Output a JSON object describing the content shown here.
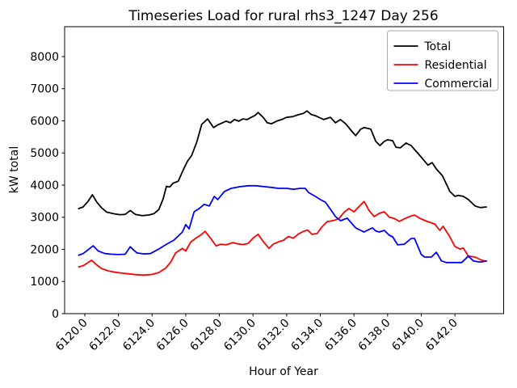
{
  "chart_data": {
    "type": "line",
    "title": "Timeseries Load for rural rhs3_1247  Day 256",
    "xlabel": "Hour of Year",
    "ylabel": "kW total",
    "xlim": [
      6118.8,
      6144.9
    ],
    "ylim": [
      0,
      8930
    ],
    "grid": false,
    "xticks": {
      "values": [
        6120,
        6122,
        6124,
        6126,
        6128,
        6130,
        6132,
        6134,
        6136,
        6138,
        6140,
        6142
      ],
      "labels": [
        "6120.0",
        "6122.0",
        "6124.0",
        "6126.0",
        "6128.0",
        "6130.0",
        "6132.0",
        "6134.0",
        "6136.0",
        "6138.0",
        "6140.0",
        "6142.0"
      ]
    },
    "yticks": {
      "values": [
        0,
        1000,
        2000,
        3000,
        4000,
        5000,
        6000,
        7000,
        8000
      ],
      "labels": [
        "0",
        "1000",
        "2000",
        "3000",
        "4000",
        "5000",
        "6000",
        "7000",
        "8000"
      ]
    },
    "legend": {
      "position": "upper right",
      "entries": [
        "Total",
        "Residential",
        "Commercial"
      ],
      "edge_color": "#aaaaaa",
      "fill_color": "#ffffff"
    },
    "series": [
      {
        "name": "Total",
        "color": "#000000",
        "x": [
          6119.6,
          6119.9,
          6120.2,
          6120.45,
          6120.7,
          6121.0,
          6121.3,
          6121.7,
          6122.1,
          6122.4,
          6122.7,
          6123.0,
          6123.4,
          6123.8,
          6124.1,
          6124.4,
          6124.65,
          6124.85,
          6125.05,
          6125.25,
          6125.55,
          6125.85,
          6126.1,
          6126.35,
          6126.65,
          6126.95,
          6127.3,
          6127.65,
          6127.9,
          6128.4,
          6128.65,
          6128.9,
          6129.15,
          6129.4,
          6129.65,
          6129.9,
          6130.1,
          6130.3,
          6130.6,
          6130.85,
          6131.1,
          6131.4,
          6131.7,
          6132.0,
          6132.35,
          6132.7,
          6133.0,
          6133.2,
          6133.45,
          6133.7,
          6134.2,
          6134.6,
          6134.9,
          6135.2,
          6135.5,
          6135.9,
          6136.1,
          6136.4,
          6136.6,
          6137.0,
          6137.3,
          6137.55,
          6137.8,
          6138.0,
          6138.3,
          6138.5,
          6138.75,
          6139.1,
          6139.4,
          6139.6,
          6140.0,
          6140.4,
          6140.65,
          6140.9,
          6141.25,
          6141.5,
          6141.7,
          6142.0,
          6142.2,
          6142.5,
          6142.8,
          6143.2,
          6143.5,
          6143.9
        ],
        "y": [
          3260,
          3320,
          3500,
          3700,
          3480,
          3290,
          3160,
          3110,
          3080,
          3090,
          3210,
          3090,
          3050,
          3070,
          3110,
          3240,
          3560,
          3960,
          3940,
          4060,
          4120,
          4470,
          4740,
          4920,
          5330,
          5890,
          6060,
          5790,
          5870,
          5990,
          5940,
          6040,
          5990,
          6060,
          6040,
          6110,
          6160,
          6260,
          6110,
          5940,
          5910,
          5990,
          6040,
          6110,
          6130,
          6190,
          6230,
          6310,
          6200,
          6160,
          6040,
          6110,
          5940,
          6040,
          5910,
          5660,
          5540,
          5740,
          5790,
          5740,
          5360,
          5230,
          5360,
          5410,
          5380,
          5180,
          5160,
          5310,
          5230,
          5110,
          4870,
          4620,
          4700,
          4500,
          4300,
          4030,
          3800,
          3650,
          3680,
          3650,
          3550,
          3350,
          3300,
          3320
        ]
      },
      {
        "name": "Residential",
        "color": "#ff0000",
        "x": [
          6119.6,
          6119.9,
          6120.2,
          6120.4,
          6120.7,
          6121.0,
          6121.4,
          6121.8,
          6122.2,
          6122.6,
          6123.0,
          6123.5,
          6124.0,
          6124.4,
          6124.8,
          6125.1,
          6125.4,
          6125.8,
          6126.0,
          6126.3,
          6126.6,
          6126.9,
          6127.15,
          6127.5,
          6127.8,
          6128.1,
          6128.4,
          6128.8,
          6129.1,
          6129.4,
          6129.7,
          6130.0,
          6130.3,
          6130.6,
          6130.95,
          6131.2,
          6131.5,
          6131.8,
          6132.1,
          6132.4,
          6132.7,
          6133.0,
          6133.25,
          6133.5,
          6133.8,
          6134.1,
          6134.4,
          6134.8,
          6135.1,
          6135.4,
          6135.7,
          6136.0,
          6136.3,
          6136.6,
          6136.9,
          6137.2,
          6137.5,
          6137.8,
          6138.1,
          6138.4,
          6138.7,
          6139.0,
          6139.3,
          6139.6,
          6139.9,
          6140.3,
          6140.8,
          6141.1,
          6141.3,
          6141.7,
          6142.0,
          6142.3,
          6142.5,
          6142.8,
          6143.2,
          6143.6,
          6143.9
        ],
        "y": [
          1450,
          1490,
          1590,
          1660,
          1520,
          1400,
          1330,
          1290,
          1260,
          1240,
          1215,
          1200,
          1220,
          1280,
          1410,
          1600,
          1890,
          2030,
          1950,
          2230,
          2350,
          2450,
          2560,
          2330,
          2110,
          2160,
          2140,
          2210,
          2170,
          2150,
          2180,
          2350,
          2470,
          2250,
          2030,
          2160,
          2230,
          2280,
          2400,
          2350,
          2480,
          2560,
          2600,
          2470,
          2490,
          2700,
          2860,
          2900,
          2950,
          3150,
          3270,
          3170,
          3330,
          3490,
          3210,
          3020,
          3120,
          3170,
          3000,
          2960,
          2870,
          2950,
          3020,
          3070,
          2970,
          2880,
          2790,
          2590,
          2720,
          2390,
          2090,
          2010,
          2040,
          1790,
          1760,
          1660,
          1630
        ]
      },
      {
        "name": "Commercial",
        "color": "#0000ff",
        "x": [
          6119.6,
          6119.9,
          6120.2,
          6120.5,
          6120.8,
          6121.2,
          6121.6,
          6122.0,
          6122.4,
          6122.7,
          6123.1,
          6123.5,
          6123.9,
          6124.4,
          6124.8,
          6125.3,
          6125.8,
          6126.0,
          6126.2,
          6126.5,
          6126.8,
          6127.1,
          6127.4,
          6127.7,
          6127.9,
          6128.3,
          6128.7,
          6129.2,
          6129.7,
          6130.2,
          6130.7,
          6131.1,
          6131.5,
          6132.0,
          6132.4,
          6132.8,
          6133.1,
          6133.3,
          6133.7,
          6134.0,
          6134.3,
          6134.6,
          6134.9,
          6135.2,
          6135.6,
          6135.9,
          6136.1,
          6136.4,
          6136.6,
          6136.9,
          6137.1,
          6137.3,
          6137.5,
          6137.8,
          6138.1,
          6138.3,
          6138.6,
          6139.0,
          6139.4,
          6139.6,
          6140.0,
          6140.2,
          6140.6,
          6140.9,
          6141.2,
          6141.5,
          6142.1,
          6142.4,
          6142.8,
          6143.1,
          6143.4,
          6143.6,
          6143.9
        ],
        "y": [
          1810,
          1870,
          1990,
          2110,
          1950,
          1870,
          1850,
          1840,
          1850,
          2080,
          1890,
          1860,
          1870,
          2010,
          2140,
          2290,
          2540,
          2770,
          2640,
          3170,
          3270,
          3400,
          3350,
          3650,
          3550,
          3800,
          3900,
          3950,
          3980,
          3980,
          3950,
          3930,
          3900,
          3900,
          3870,
          3900,
          3900,
          3770,
          3650,
          3550,
          3470,
          3250,
          3020,
          2890,
          2970,
          2790,
          2670,
          2590,
          2540,
          2620,
          2670,
          2570,
          2540,
          2590,
          2440,
          2390,
          2140,
          2160,
          2340,
          2340,
          1840,
          1760,
          1760,
          1910,
          1640,
          1590,
          1590,
          1590,
          1790,
          1640,
          1610,
          1610,
          1640
        ]
      }
    ]
  }
}
